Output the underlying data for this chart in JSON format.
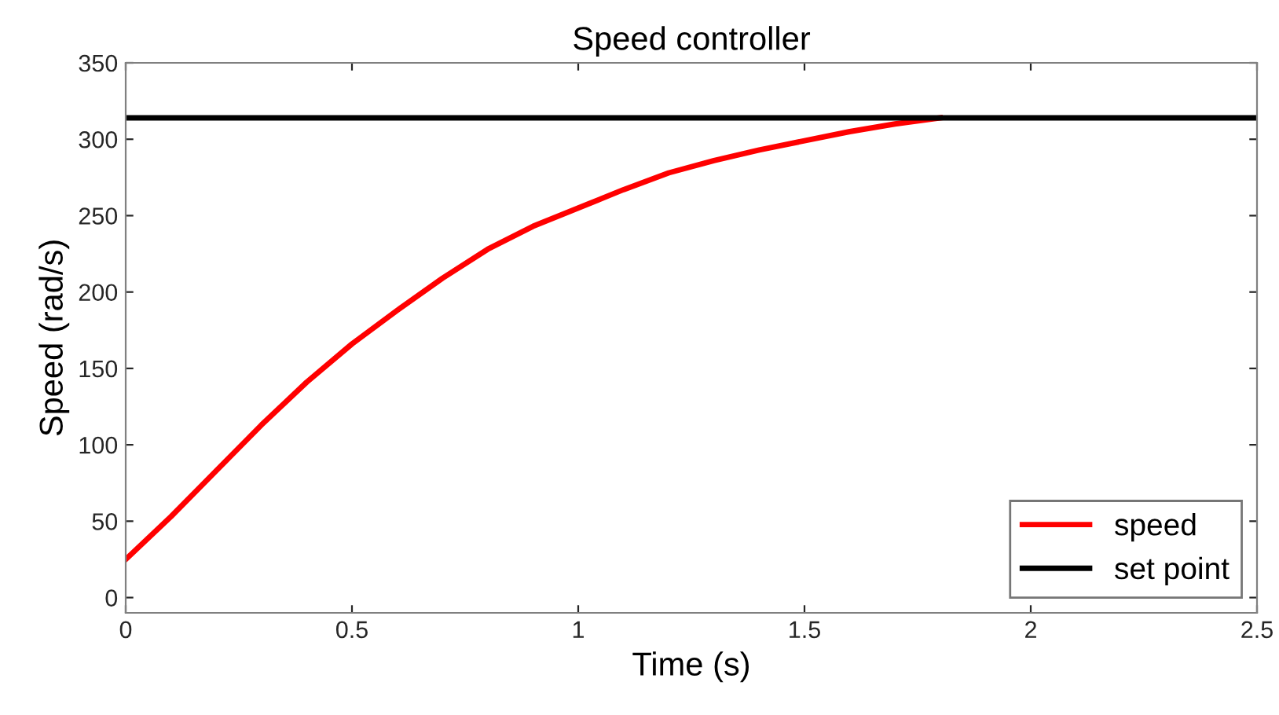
{
  "chart_data": {
    "type": "line",
    "title": "Speed controller",
    "xlabel": "Time (s)",
    "ylabel": "Speed (rad/s)",
    "series": [
      {
        "name": "speed",
        "color": "#ff0000",
        "x": [
          0,
          0.1,
          0.2,
          0.3,
          0.4,
          0.5,
          0.6,
          0.7,
          0.8,
          0.9,
          1.0,
          1.1,
          1.2,
          1.3,
          1.4,
          1.5,
          1.6,
          1.7,
          1.8
        ],
        "values": [
          25,
          53,
          83,
          113,
          141,
          166,
          188,
          209,
          228,
          243,
          255,
          267,
          278,
          286,
          293,
          299,
          305,
          310,
          314
        ]
      },
      {
        "name": "set point",
        "color": "#000000",
        "x": [
          0,
          2.5
        ],
        "values": [
          314,
          314
        ]
      }
    ],
    "xlim": [
      0,
      2.5
    ],
    "xticks": [
      0,
      0.5,
      1,
      1.5,
      2,
      2.5
    ],
    "ylim": [
      -10,
      350
    ],
    "yticks": [
      0,
      50,
      100,
      150,
      200,
      250,
      300,
      350
    ],
    "legend": "bottom right",
    "grid": false,
    "line_style": "solid",
    "marker": "none"
  }
}
